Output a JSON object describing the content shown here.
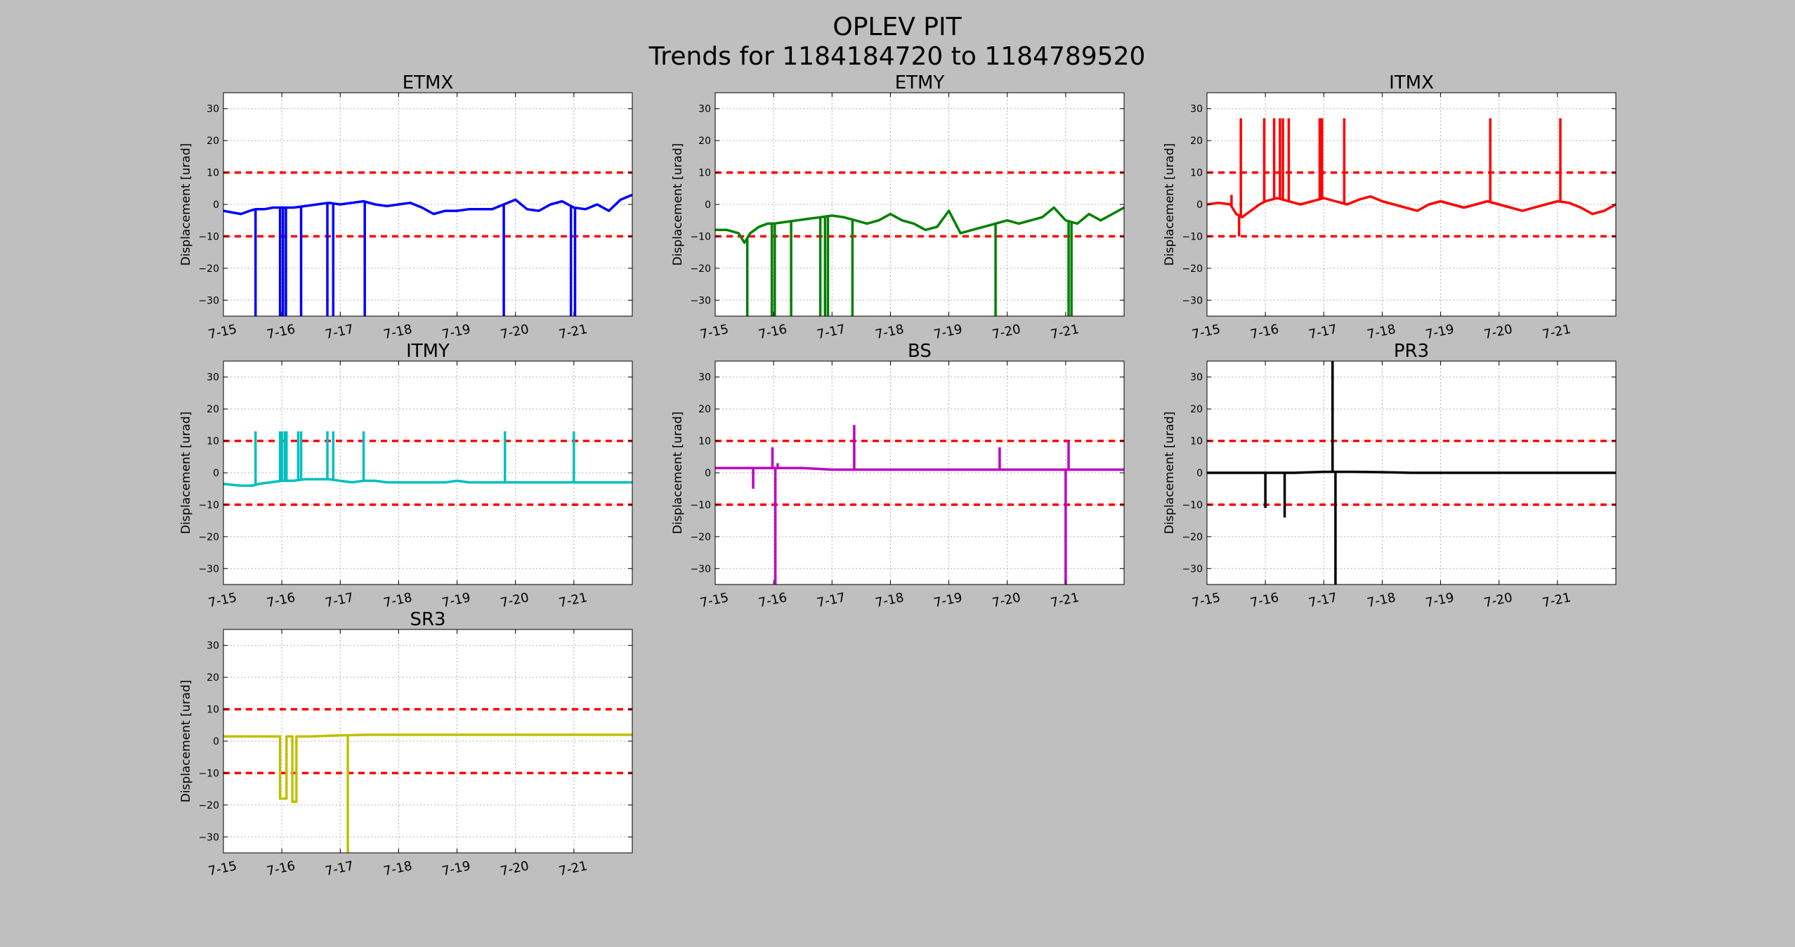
{
  "figure": {
    "title_line1": "OPLEV PIT",
    "title_line2": "Trends for 1184184720 to 1184789520",
    "background": "#bfbfbf"
  },
  "chart_data": [
    {
      "type": "line",
      "title": "ETMX",
      "ylabel": "Displacement [urad]",
      "xlim": [
        0,
        7
      ],
      "ylim": [
        -35,
        35
      ],
      "xticks": [
        0,
        1,
        2,
        3,
        4,
        5,
        6
      ],
      "xticklabels": [
        "7-15",
        "7-16",
        "7-17",
        "7-18",
        "7-19",
        "7-20",
        "7-21"
      ],
      "yticks": [
        -30,
        -20,
        -10,
        0,
        10,
        20,
        30
      ],
      "thresholds": [
        10,
        -10
      ],
      "threshold_color": "#ff0000",
      "grid": true,
      "series": [
        {
          "color": "#0000ff",
          "x": [
            0,
            0.15,
            0.3,
            0.45,
            0.55,
            0.7,
            0.85,
            1.0,
            1.2,
            1.4,
            1.6,
            1.8,
            2.0,
            2.2,
            2.4,
            2.6,
            2.8,
            3.0,
            3.2,
            3.4,
            3.6,
            3.8,
            4.0,
            4.2,
            4.4,
            4.6,
            4.8,
            5.0,
            5.2,
            5.4,
            5.6,
            5.8,
            6.0,
            6.2,
            6.4,
            6.6,
            6.8,
            7.0
          ],
          "y": [
            -2,
            -2.5,
            -3,
            -2,
            -1.5,
            -1.5,
            -1,
            -1,
            -1,
            -0.5,
            0,
            0.5,
            0,
            0.5,
            1,
            0,
            -0.5,
            0,
            0.5,
            -1,
            -3,
            -2,
            -2,
            -1.5,
            -1.5,
            -1.5,
            0,
            1.5,
            -1.5,
            -2,
            0,
            1,
            -1,
            -1.5,
            0,
            -2,
            1.5,
            3
          ]
        }
      ],
      "spikes": [
        {
          "x": 0.55,
          "y": -35
        },
        {
          "x": 0.97,
          "y": -35
        },
        {
          "x": 1.02,
          "y": -35
        },
        {
          "x": 1.07,
          "y": -35
        },
        {
          "x": 1.33,
          "y": -35
        },
        {
          "x": 1.78,
          "y": -35
        },
        {
          "x": 1.88,
          "y": -35
        },
        {
          "x": 2.42,
          "y": -35
        },
        {
          "x": 4.8,
          "y": -35
        },
        {
          "x": 5.95,
          "y": -35
        },
        {
          "x": 6.02,
          "y": -35
        }
      ]
    },
    {
      "type": "line",
      "title": "ETMY",
      "ylabel": "Displacement [urad]",
      "xlim": [
        0,
        7
      ],
      "ylim": [
        -35,
        35
      ],
      "xticks": [
        0,
        1,
        2,
        3,
        4,
        5,
        6
      ],
      "xticklabels": [
        "7-15",
        "7-16",
        "7-17",
        "7-18",
        "7-19",
        "7-20",
        "7-21"
      ],
      "yticks": [
        -30,
        -20,
        -10,
        0,
        10,
        20,
        30
      ],
      "thresholds": [
        10,
        -10
      ],
      "threshold_color": "#ff0000",
      "grid": true,
      "series": [
        {
          "color": "#008000",
          "x": [
            0,
            0.2,
            0.4,
            0.5,
            0.6,
            0.75,
            0.9,
            1.0,
            1.2,
            1.4,
            1.6,
            1.8,
            2.0,
            2.2,
            2.4,
            2.6,
            2.8,
            3.0,
            3.2,
            3.4,
            3.6,
            3.8,
            4.0,
            4.2,
            4.4,
            4.6,
            4.8,
            5.0,
            5.2,
            5.4,
            5.6,
            5.8,
            6.0,
            6.2,
            6.4,
            6.6,
            6.8,
            7.0
          ],
          "y": [
            -8,
            -8,
            -9,
            -12,
            -9,
            -7,
            -6,
            -6,
            -5.5,
            -5,
            -4.5,
            -4,
            -3.5,
            -4,
            -5,
            -6,
            -5,
            -3,
            -5,
            -6,
            -8,
            -7,
            -2,
            -9,
            -8,
            -7,
            -6,
            -5,
            -6,
            -5,
            -4,
            -1,
            -5,
            -6,
            -3,
            -5,
            -3,
            -1
          ]
        }
      ],
      "spikes": [
        {
          "x": 0.55,
          "y": -35
        },
        {
          "x": 0.97,
          "y": -35
        },
        {
          "x": 1.02,
          "y": -35
        },
        {
          "x": 1.3,
          "y": -35
        },
        {
          "x": 1.8,
          "y": -35
        },
        {
          "x": 1.88,
          "y": -35
        },
        {
          "x": 1.93,
          "y": -35
        },
        {
          "x": 2.35,
          "y": -35
        },
        {
          "x": 4.8,
          "y": -35
        },
        {
          "x": 6.05,
          "y": -35
        },
        {
          "x": 6.1,
          "y": -35
        }
      ]
    },
    {
      "type": "line",
      "title": "ITMX",
      "ylabel": "Displacement [urad]",
      "xlim": [
        0,
        7
      ],
      "ylim": [
        -35,
        35
      ],
      "xticks": [
        0,
        1,
        2,
        3,
        4,
        5,
        6
      ],
      "xticklabels": [
        "7-15",
        "7-16",
        "7-17",
        "7-18",
        "7-19",
        "7-20",
        "7-21"
      ],
      "yticks": [
        -30,
        -20,
        -10,
        0,
        10,
        20,
        30
      ],
      "thresholds": [
        10,
        -10
      ],
      "threshold_color": "#ff0000",
      "grid": true,
      "series": [
        {
          "color": "#ff0000",
          "x": [
            0,
            0.2,
            0.4,
            0.5,
            0.6,
            0.75,
            0.9,
            1.0,
            1.2,
            1.4,
            1.6,
            1.8,
            2.0,
            2.2,
            2.4,
            2.6,
            2.8,
            3.0,
            3.2,
            3.4,
            3.6,
            3.8,
            4.0,
            4.2,
            4.4,
            4.6,
            4.8,
            5.0,
            5.2,
            5.4,
            5.6,
            5.8,
            6.0,
            6.2,
            6.4,
            6.6,
            6.8,
            7.0
          ],
          "y": [
            0,
            0.5,
            0,
            -3,
            -4,
            -2,
            0,
            1,
            2,
            1,
            0,
            1,
            2,
            1,
            0,
            1.5,
            2.5,
            1,
            0,
            -1,
            -2,
            0,
            1,
            0,
            -1,
            0,
            1,
            0,
            -1,
            -2,
            -1,
            0,
            1,
            0.5,
            -1,
            -3,
            -2,
            0
          ]
        }
      ],
      "spikes": [
        {
          "x": 0.42,
          "y": 3
        },
        {
          "x": 0.55,
          "y": -10
        },
        {
          "x": 0.58,
          "y": 27
        },
        {
          "x": 0.98,
          "y": 27
        },
        {
          "x": 1.15,
          "y": 27
        },
        {
          "x": 1.25,
          "y": 27
        },
        {
          "x": 1.3,
          "y": 27
        },
        {
          "x": 1.4,
          "y": 27
        },
        {
          "x": 1.93,
          "y": 27
        },
        {
          "x": 1.97,
          "y": 27
        },
        {
          "x": 2.35,
          "y": 27
        },
        {
          "x": 4.85,
          "y": 27
        },
        {
          "x": 6.05,
          "y": 27
        }
      ]
    },
    {
      "type": "line",
      "title": "ITMY",
      "ylabel": "Displacement [urad]",
      "xlim": [
        0,
        7
      ],
      "ylim": [
        -35,
        35
      ],
      "xticks": [
        0,
        1,
        2,
        3,
        4,
        5,
        6
      ],
      "xticklabels": [
        "7-15",
        "7-16",
        "7-17",
        "7-18",
        "7-19",
        "7-20",
        "7-21"
      ],
      "yticks": [
        -30,
        -20,
        -10,
        0,
        10,
        20,
        30
      ],
      "thresholds": [
        10,
        -10
      ],
      "threshold_color": "#ff0000",
      "grid": true,
      "series": [
        {
          "color": "#00bfbf",
          "x": [
            0,
            0.3,
            0.5,
            0.6,
            0.8,
            1.0,
            1.2,
            1.4,
            1.6,
            1.8,
            2.0,
            2.2,
            2.4,
            2.6,
            2.8,
            3.0,
            3.2,
            3.4,
            3.6,
            3.8,
            4.0,
            4.2,
            4.4,
            4.6,
            4.8,
            5.0,
            5.2,
            5.4,
            5.6,
            5.8,
            6.0,
            6.2,
            6.4,
            6.6,
            6.8,
            7.0
          ],
          "y": [
            -3.5,
            -4,
            -4,
            -3.5,
            -3,
            -2.5,
            -2.5,
            -2,
            -2,
            -2,
            -2.5,
            -3,
            -2.5,
            -2.5,
            -3,
            -3,
            -3,
            -3,
            -3,
            -3,
            -2.5,
            -3,
            -3,
            -3,
            -3,
            -3,
            -3,
            -3,
            -3,
            -3,
            -3,
            -3,
            -3,
            -3,
            -3,
            -3
          ]
        }
      ],
      "spikes": [
        {
          "x": 0.55,
          "y": 13
        },
        {
          "x": 0.97,
          "y": 13
        },
        {
          "x": 1.0,
          "y": 13
        },
        {
          "x": 1.05,
          "y": 13
        },
        {
          "x": 1.08,
          "y": 13
        },
        {
          "x": 1.28,
          "y": 13
        },
        {
          "x": 1.33,
          "y": 13
        },
        {
          "x": 1.78,
          "y": 13
        },
        {
          "x": 1.88,
          "y": 13
        },
        {
          "x": 2.4,
          "y": 13
        },
        {
          "x": 4.82,
          "y": 13
        },
        {
          "x": 6.0,
          "y": 13
        }
      ]
    },
    {
      "type": "line",
      "title": "BS",
      "ylabel": "Displacement [urad]",
      "xlim": [
        0,
        7
      ],
      "ylim": [
        -35,
        35
      ],
      "xticks": [
        0,
        1,
        2,
        3,
        4,
        5,
        6
      ],
      "xticklabels": [
        "7-15",
        "7-16",
        "7-17",
        "7-18",
        "7-19",
        "7-20",
        "7-21"
      ],
      "yticks": [
        -30,
        -20,
        -10,
        0,
        10,
        20,
        30
      ],
      "thresholds": [
        10,
        -10
      ],
      "threshold_color": "#ff0000",
      "grid": true,
      "series": [
        {
          "color": "#bf00bf",
          "x": [
            0,
            0.5,
            1.0,
            1.5,
            2.0,
            2.5,
            3.0,
            3.5,
            4.0,
            4.5,
            5.0,
            5.5,
            6.0,
            6.5,
            7.0
          ],
          "y": [
            1.5,
            1.5,
            1.5,
            1.5,
            1,
            1,
            1,
            1,
            1,
            1,
            1,
            1,
            1,
            1,
            1
          ]
        }
      ],
      "spikes": [
        {
          "x": 0.65,
          "y": -5
        },
        {
          "x": 0.98,
          "y": 8
        },
        {
          "x": 1.03,
          "y": -35
        },
        {
          "x": 1.07,
          "y": 3
        },
        {
          "x": 2.38,
          "y": 15
        },
        {
          "x": 4.87,
          "y": 8
        },
        {
          "x": 6.0,
          "y": -35
        },
        {
          "x": 6.05,
          "y": 10
        }
      ]
    },
    {
      "type": "line",
      "title": "PR3",
      "ylabel": "Displacement [urad]",
      "xlim": [
        0,
        7
      ],
      "ylim": [
        -35,
        35
      ],
      "xticks": [
        0,
        1,
        2,
        3,
        4,
        5,
        6
      ],
      "xticklabels": [
        "7-15",
        "7-16",
        "7-17",
        "7-18",
        "7-19",
        "7-20",
        "7-21"
      ],
      "yticks": [
        -30,
        -20,
        -10,
        0,
        10,
        20,
        30
      ],
      "thresholds": [
        10,
        -10
      ],
      "threshold_color": "#ff0000",
      "grid": true,
      "series": [
        {
          "color": "#000000",
          "x": [
            0,
            0.5,
            1.0,
            1.5,
            2.0,
            2.5,
            3.0,
            3.5,
            4.0,
            4.5,
            5.0,
            5.5,
            6.0,
            6.5,
            7.0
          ],
          "y": [
            0,
            0,
            0,
            0,
            0.3,
            0.3,
            0.2,
            0,
            0,
            0,
            0,
            0,
            0,
            0,
            0
          ]
        }
      ],
      "spikes": [
        {
          "x": 1.0,
          "y": -11
        },
        {
          "x": 1.33,
          "y": -14
        },
        {
          "x": 2.15,
          "y": 35
        },
        {
          "x": 2.2,
          "y": -35
        }
      ]
    },
    {
      "type": "line",
      "title": "SR3",
      "ylabel": "Displacement [urad]",
      "xlim": [
        0,
        7
      ],
      "ylim": [
        -35,
        35
      ],
      "xticks": [
        0,
        1,
        2,
        3,
        4,
        5,
        6
      ],
      "xticklabels": [
        "7-15",
        "7-16",
        "7-17",
        "7-18",
        "7-19",
        "7-20",
        "7-21"
      ],
      "yticks": [
        -30,
        -20,
        -10,
        0,
        10,
        20,
        30
      ],
      "thresholds": [
        10,
        -10
      ],
      "threshold_color": "#ff0000",
      "grid": true,
      "series": [
        {
          "color": "#bfbf00",
          "x": [
            0,
            0.5,
            0.97,
            0.97,
            1.08,
            1.08,
            1.18,
            1.18,
            1.25,
            1.25,
            1.3,
            1.5,
            2.0,
            2.5,
            3.0,
            3.5,
            4.0,
            4.5,
            5.0,
            5.5,
            6.0,
            6.5,
            7.0
          ],
          "y": [
            1.5,
            1.5,
            1.5,
            -18,
            -18,
            1.5,
            1.5,
            -19,
            -19,
            1.5,
            1.5,
            1.5,
            1.8,
            2,
            2,
            2,
            2,
            2,
            2,
            2,
            2,
            2,
            2
          ]
        }
      ],
      "spikes": [
        {
          "x": 2.13,
          "y": -35
        }
      ]
    }
  ]
}
